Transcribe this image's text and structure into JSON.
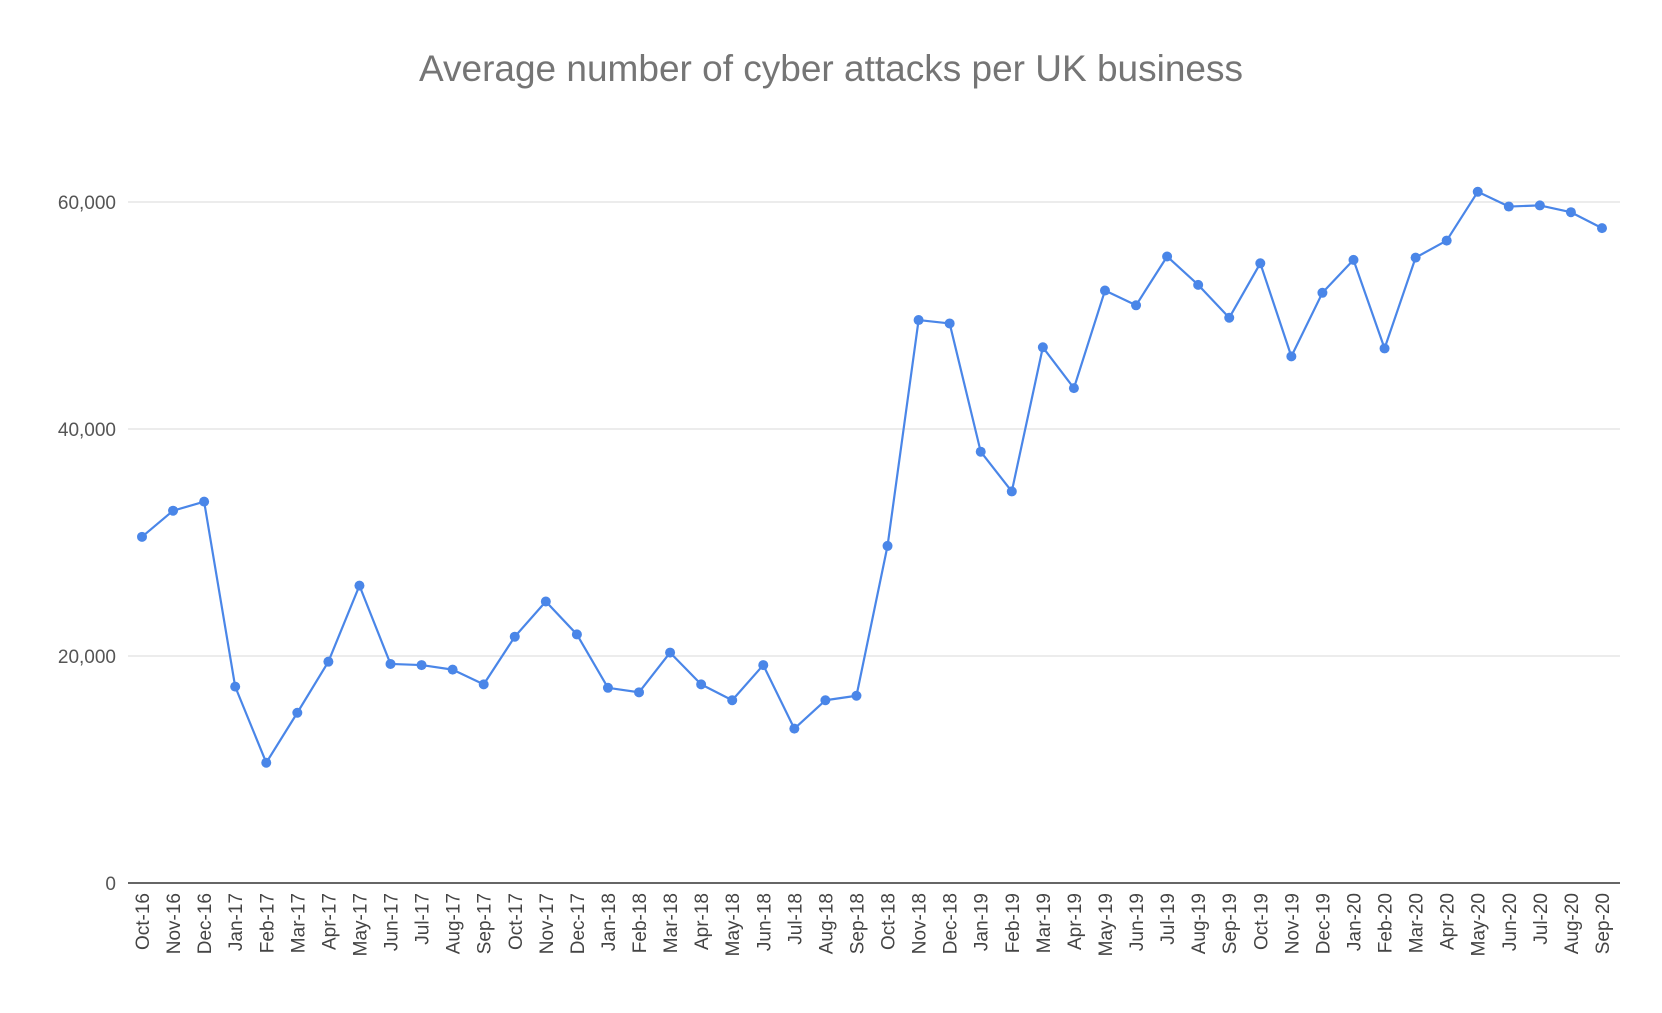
{
  "chart_data": {
    "type": "line",
    "title": "Average number of cyber attacks per UK business",
    "xlabel": "",
    "ylabel": "",
    "ylim": [
      0,
      60000
    ],
    "yticks": [
      0,
      20000,
      40000,
      60000
    ],
    "ytick_labels": [
      "0",
      "20,000",
      "40,000",
      "60,000"
    ],
    "grid": true,
    "legend": "none",
    "line_color": "#4a86e8",
    "categories": [
      "Oct-16",
      "Nov-16",
      "Dec-16",
      "Jan-17",
      "Feb-17",
      "Mar-17",
      "Apr-17",
      "May-17",
      "Jun-17",
      "Jul-17",
      "Aug-17",
      "Sep-17",
      "Oct-17",
      "Nov-17",
      "Dec-17",
      "Jan-18",
      "Feb-18",
      "Mar-18",
      "Apr-18",
      "May-18",
      "Jun-18",
      "Jul-18",
      "Aug-18",
      "Sep-18",
      "Oct-18",
      "Nov-18",
      "Dec-18",
      "Jan-19",
      "Feb-19",
      "Mar-19",
      "Apr-19",
      "May-19",
      "Jun-19",
      "Jul-19",
      "Aug-19",
      "Sep-19",
      "Oct-19",
      "Nov-19",
      "Dec-19",
      "Jan-20",
      "Feb-20",
      "Mar-20",
      "Apr-20",
      "May-20",
      "Jun-20",
      "Jul-20",
      "Aug-20",
      "Sep-20"
    ],
    "series": [
      {
        "values": [
          30500,
          32800,
          33600,
          17300,
          10600,
          15000,
          19500,
          26200,
          19300,
          19200,
          18800,
          17500,
          21700,
          24800,
          21900,
          17200,
          16800,
          20300,
          17500,
          16100,
          19200,
          13600,
          16100,
          16500,
          29700,
          49600,
          49300,
          38000,
          34500,
          47200,
          43600,
          52200,
          50900,
          55200,
          52700,
          49800,
          54600,
          46400,
          52000,
          54900,
          47100,
          55100,
          56600,
          60900,
          59600,
          59700,
          59100,
          57700
        ]
      }
    ]
  }
}
